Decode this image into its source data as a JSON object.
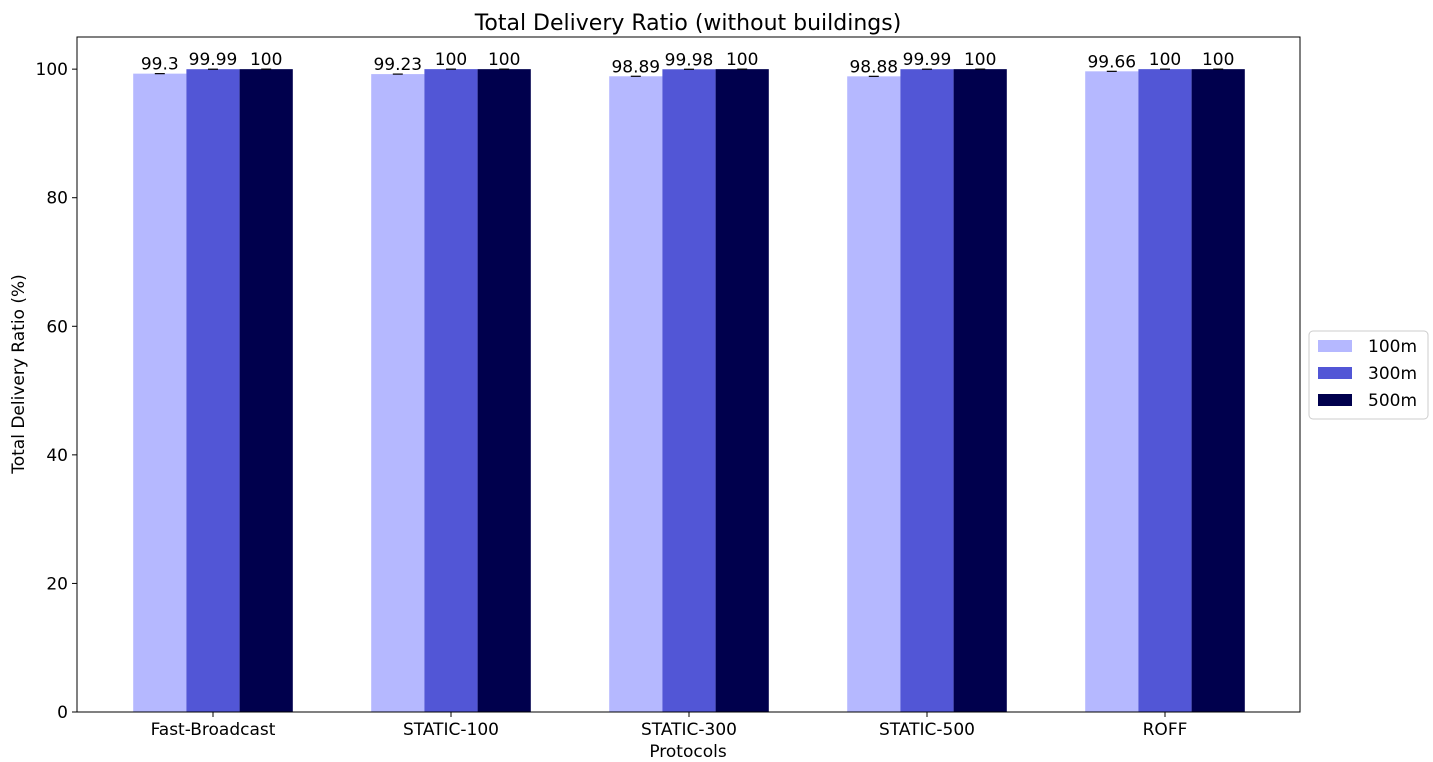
{
  "chart_data": {
    "type": "bar",
    "title": "Total Delivery Ratio (without buildings)",
    "xlabel": "Protocols",
    "ylabel": "Total Delivery Ratio (%)",
    "categories": [
      "Fast-Broadcast",
      "STATIC-100",
      "STATIC-300",
      "STATIC-500",
      "ROFF"
    ],
    "series": [
      {
        "name": "100m",
        "color": "#b5b8ff",
        "values": [
          99.3,
          99.23,
          98.89,
          98.88,
          99.66
        ],
        "labels": [
          "99.3",
          "99.23",
          "98.89",
          "98.88",
          "99.66"
        ]
      },
      {
        "name": "300m",
        "color": "#5256d6",
        "values": [
          99.99,
          100,
          99.98,
          99.99,
          100
        ],
        "labels": [
          "99.99",
          "100",
          "99.98",
          "99.99",
          "100"
        ]
      },
      {
        "name": "500m",
        "color": "#00004d",
        "values": [
          100,
          100,
          100,
          100,
          100
        ],
        "labels": [
          "100",
          "100",
          "100",
          "100",
          "100"
        ]
      }
    ],
    "ylim": [
      0,
      105
    ],
    "yticks": [
      0,
      20,
      40,
      60,
      80,
      100
    ],
    "grid": false,
    "legend_position": "center-right-outside"
  }
}
